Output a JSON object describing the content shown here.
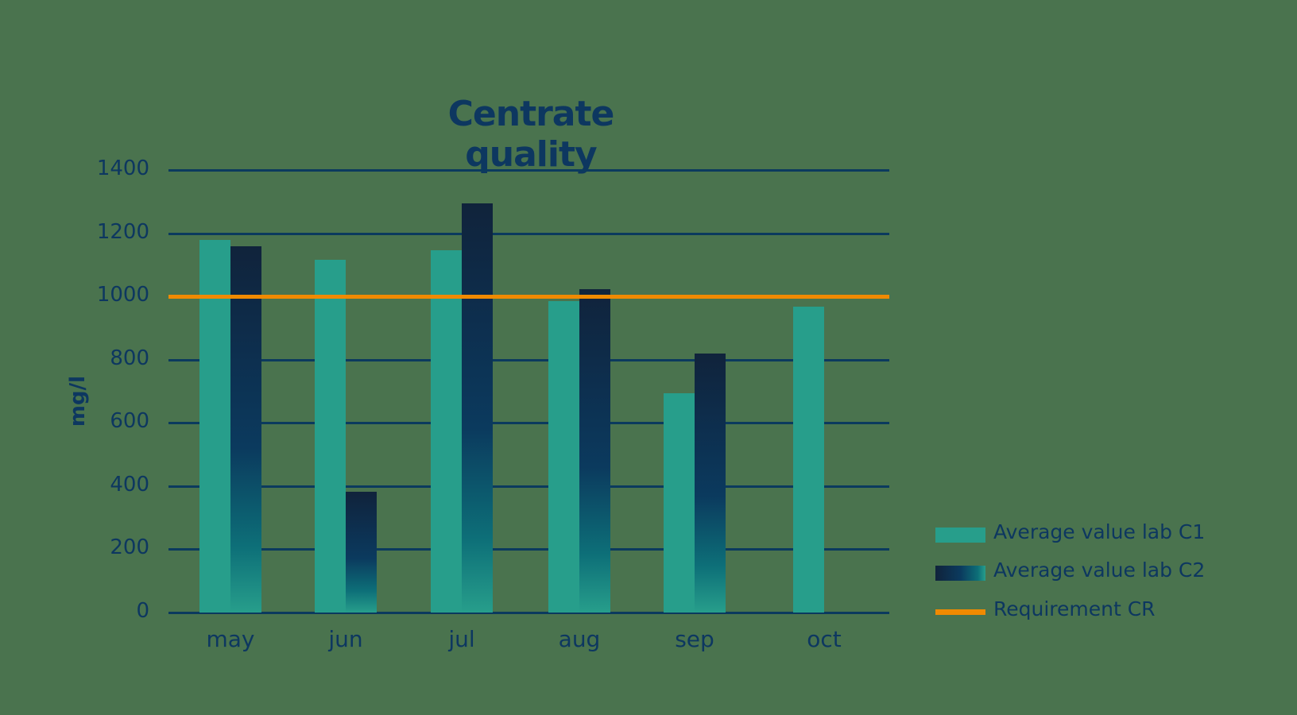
{
  "chart_data": {
    "type": "bar",
    "title": "Centrate quality",
    "xlabel": "",
    "ylabel": "mg/l",
    "ylim": [
      0,
      1400
    ],
    "yticks": [
      0,
      200,
      400,
      600,
      800,
      1000,
      1200,
      1400
    ],
    "grid": true,
    "legend_position": "right-bottom",
    "categories": [
      "may",
      "jun",
      "jul",
      "aug",
      "sep",
      "oct"
    ],
    "series": [
      {
        "name": "Average value lab C1",
        "color": "#279e8b",
        "values": [
          1180,
          1115,
          1145,
          985,
          693,
          967
        ]
      },
      {
        "name": "Average value lab C2",
        "color": "gradient #10233b→#279e8b",
        "values": [
          1158,
          382,
          1294,
          1023,
          819,
          null
        ]
      }
    ],
    "reference_lines": [
      {
        "name": "Requirement CR",
        "value": 1000,
        "color": "#f08a00"
      }
    ]
  },
  "title": "Centrate quality",
  "ylabel": "mg/l",
  "yticks": [
    "0",
    "200",
    "400",
    "600",
    "800",
    "1000",
    "1200",
    "1400"
  ],
  "xticks": [
    "may",
    "jun",
    "jul",
    "aug",
    "sep",
    "oct"
  ],
  "legend": {
    "c1": "Average value lab C1",
    "c2": "Average value lab C2",
    "req": "Requirement CR"
  },
  "colors": {
    "background": "#4a734e",
    "text": "#0d3760",
    "grid": "#0b3a5e",
    "c1": "#279e8b",
    "requirement": "#f08a00"
  }
}
